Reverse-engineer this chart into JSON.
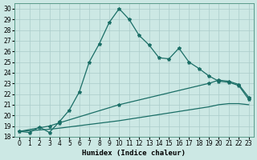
{
  "xlabel": "Humidex (Indice chaleur)",
  "background_color": "#cce8e4",
  "grid_color": "#aaccca",
  "line_color": "#1a6e66",
  "xlim": [
    -0.5,
    23.5
  ],
  "ylim": [
    18,
    30.5
  ],
  "xticks": [
    0,
    1,
    2,
    3,
    4,
    5,
    6,
    7,
    8,
    9,
    10,
    11,
    12,
    13,
    14,
    15,
    16,
    17,
    18,
    19,
    20,
    21,
    22,
    23
  ],
  "yticks": [
    18,
    19,
    20,
    21,
    22,
    23,
    24,
    25,
    26,
    27,
    28,
    29,
    30
  ],
  "line1_x": [
    0,
    1,
    2,
    3,
    4,
    5,
    6,
    7,
    8,
    9,
    10,
    11,
    12,
    13,
    14,
    15,
    16,
    17,
    18,
    19,
    20,
    21,
    22,
    23
  ],
  "line1_y": [
    18.5,
    18.4,
    18.9,
    18.4,
    19.4,
    20.5,
    22.2,
    25.0,
    26.7,
    28.7,
    30.0,
    29.0,
    27.5,
    26.6,
    25.4,
    25.3,
    26.3,
    25.0,
    24.4,
    23.7,
    23.2,
    23.1,
    22.8,
    21.5
  ],
  "line2_x": [
    0,
    3,
    4,
    10,
    19,
    20,
    21,
    22,
    23
  ],
  "line2_y": [
    18.5,
    19.0,
    19.3,
    21.0,
    23.0,
    23.3,
    23.2,
    22.9,
    21.7
  ],
  "line3_x": [
    0,
    3,
    4,
    10,
    19,
    20,
    21,
    22,
    23
  ],
  "line3_y": [
    18.5,
    18.7,
    18.8,
    19.5,
    20.8,
    21.0,
    21.1,
    21.1,
    21.0
  ],
  "marker": "*",
  "markersize": 3,
  "linewidth": 0.9,
  "tick_fontsize": 5.5,
  "label_fontsize": 6.5
}
